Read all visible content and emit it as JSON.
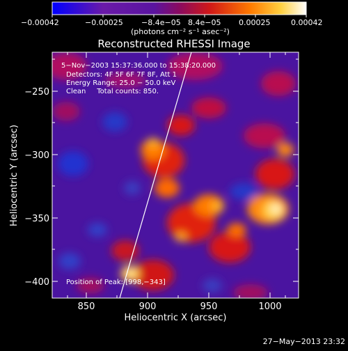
{
  "colorbar": {
    "tick_labels": [
      "−0.00042",
      "−0.00025",
      "−8.4e−05",
      "8.4e−05",
      "0.00025",
      "0.00042"
    ],
    "units": "(photons cm⁻² s⁻¹ asec⁻²)"
  },
  "title": "Reconstructed RHESSI Image",
  "annotations": {
    "time_range": "5−Nov−2003 15:37:36.000 to 15:38:20.000",
    "detectors": "Detectors: 4F 5F 6F 7F 8F, Att 1",
    "energy_range": "Energy Range: 25.0 − 50.0 keV",
    "algorithm": "Clean     Total counts: 850.",
    "peak": "Position of Peak: [998,−343]"
  },
  "axes": {
    "xlabel": "Heliocentric X (arcsec)",
    "ylabel": "Heliocentric Y (arcsec)",
    "xticks": [
      "850",
      "900",
      "950",
      "1000"
    ],
    "yticks": [
      "−250",
      "−300",
      "−350",
      "−400"
    ]
  },
  "footer_date": "27−May−2013 23:32",
  "colors": {
    "background": "#000000",
    "limb_line": "#ffffff"
  }
}
